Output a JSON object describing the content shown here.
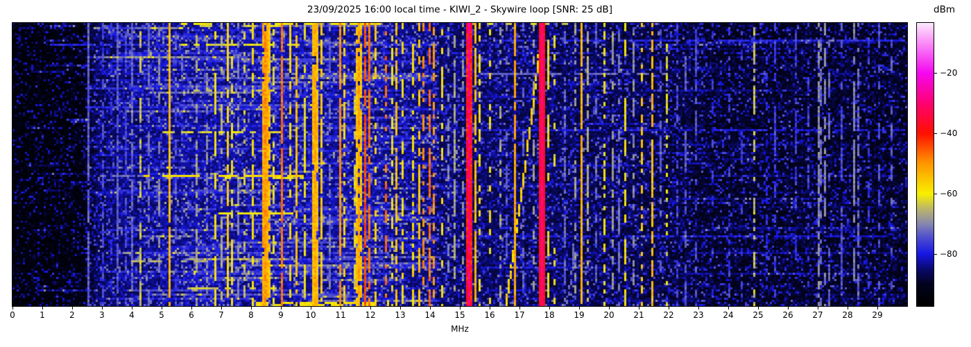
{
  "title": "23/09/2025 16:00 local time - KIWI_2 - Skywire loop [SNR: 25 dB]",
  "colorbar": {
    "label": "dBm",
    "ticks": [
      -20,
      -40,
      -60,
      -80
    ]
  },
  "chart_data": {
    "type": "heatmap",
    "title": "23/09/2025 16:00 local time - KIWI_2 - Skywire loop [SNR: 25 dB]",
    "xlabel": "MHz",
    "x_range": [
      0,
      30
    ],
    "x_ticks": [
      0,
      1,
      2,
      3,
      4,
      5,
      6,
      7,
      8,
      9,
      10,
      11,
      12,
      13,
      14,
      15,
      16,
      17,
      18,
      19,
      20,
      21,
      22,
      23,
      24,
      25,
      26,
      27,
      28,
      29
    ],
    "y_axis_labels_visible": false,
    "value_unit": "dBm",
    "value_range": [
      -97.2,
      -3.4
    ],
    "colorbar_ticks": [
      -20,
      -40,
      -60,
      -80
    ],
    "legend_position": "right-colorbar",
    "grid": [
      430,
      136
    ],
    "seed": 1234,
    "colormap_stops": [
      [
        -97.2,
        "#000000"
      ],
      [
        -90,
        "#03031e"
      ],
      [
        -85,
        "#0a0a6e"
      ],
      [
        -80,
        "#1717e6"
      ],
      [
        -75,
        "#4a4ad2"
      ],
      [
        -70,
        "#8787b0"
      ],
      [
        -65,
        "#bdb76b"
      ],
      [
        -60,
        "#f8f000"
      ],
      [
        -50,
        "#ff9800"
      ],
      [
        -40,
        "#ff1000"
      ],
      [
        -30,
        "#ff0272"
      ],
      [
        -20,
        "#f607f0"
      ],
      [
        -10,
        "#fa8cf8"
      ],
      [
        -3.4,
        "#fde9fd"
      ]
    ],
    "noise_profile": [
      [
        0,
        -95.5
      ],
      [
        2.3,
        -95
      ],
      [
        2.7,
        -89
      ],
      [
        3.2,
        -86.5
      ],
      [
        6,
        -84.5
      ],
      [
        9,
        -84
      ],
      [
        12,
        -84.5
      ],
      [
        14,
        -86
      ],
      [
        16,
        -87.5
      ],
      [
        19,
        -88
      ],
      [
        22,
        -89
      ],
      [
        23.5,
        -91
      ],
      [
        27,
        -91
      ],
      [
        30,
        -91.5
      ]
    ],
    "signals": [
      [
        2.52,
        -73,
        0.95
      ],
      [
        3.0,
        -76,
        0.7
      ],
      [
        3.3,
        -78,
        0.5
      ],
      [
        3.55,
        -74,
        0.85
      ],
      [
        3.8,
        -76,
        0.6
      ],
      [
        4.0,
        -73,
        0.85
      ],
      [
        4.28,
        -64,
        0.55
      ],
      [
        4.6,
        -72,
        0.6
      ],
      [
        4.9,
        -70,
        0.5
      ],
      [
        5.25,
        -54,
        0.97
      ],
      [
        5.45,
        -75,
        0.5
      ],
      [
        6.2,
        -67,
        0.5
      ],
      [
        6.55,
        -70,
        0.5
      ],
      [
        6.8,
        -60,
        0.55
      ],
      [
        7.0,
        -66,
        0.6
      ],
      [
        7.2,
        -57,
        0.75
      ],
      [
        7.35,
        -60,
        0.5
      ],
      [
        7.55,
        -70,
        0.55
      ],
      [
        7.8,
        -64,
        0.5
      ],
      [
        8.08,
        -58,
        0.55
      ],
      [
        8.45,
        -50,
        0.95,
        1,
        2,
        7
      ],
      [
        8.6,
        -55,
        0.7
      ],
      [
        8.78,
        -62,
        0.45
      ],
      [
        9.06,
        -47,
        0.9
      ],
      [
        9.3,
        -58,
        0.55
      ],
      [
        9.55,
        -55,
        0.8
      ],
      [
        9.8,
        -61,
        0.45
      ],
      [
        10.15,
        -52,
        0.95,
        1,
        2,
        7
      ],
      [
        10.35,
        -56,
        0.7
      ],
      [
        10.62,
        -72,
        0.55
      ],
      [
        11.0,
        -50,
        0.9
      ],
      [
        11.15,
        -57,
        0.65
      ],
      [
        11.45,
        -63,
        0.5
      ],
      [
        11.65,
        -52,
        0.85,
        1,
        3,
        7
      ],
      [
        11.86,
        -44,
        0.9
      ],
      [
        11.98,
        -47,
        0.75
      ],
      [
        12.2,
        -57,
        0.5
      ],
      [
        12.5,
        -47,
        0.45
      ],
      [
        12.7,
        -61,
        0.5
      ],
      [
        12.87,
        -55,
        0.7
      ],
      [
        13.1,
        -59,
        0.5
      ],
      [
        13.4,
        -58,
        0.5
      ],
      [
        13.62,
        -55,
        0.6
      ],
      [
        13.76,
        -50,
        0.55
      ],
      [
        14.02,
        -47,
        0.65
      ],
      [
        14.16,
        -50,
        0.5
      ],
      [
        14.4,
        -59,
        0.35
      ],
      [
        14.62,
        -70,
        0.4
      ],
      [
        14.85,
        -67,
        0.7
      ],
      [
        15.07,
        -69,
        0.5
      ],
      [
        15.33,
        -29,
        1,
        1,
        10,
        11
      ],
      [
        15.5,
        -54,
        0.85
      ],
      [
        15.63,
        -58,
        0.5
      ],
      [
        16.0,
        -59,
        0.4
      ],
      [
        16.35,
        -67,
        0.45
      ],
      [
        16.6,
        -74,
        0.4
      ],
      [
        16.84,
        -52,
        0.95
      ],
      [
        17.1,
        -73,
        0.5
      ],
      [
        17.5,
        -68,
        0.45
      ],
      [
        17.79,
        -27,
        1,
        1,
        12,
        5
      ],
      [
        17.97,
        -58,
        0.4
      ],
      [
        18.2,
        -60,
        0.35
      ],
      [
        18.55,
        -73,
        0.5
      ],
      [
        18.9,
        -68,
        0.4
      ],
      [
        19.08,
        -53,
        0.9
      ],
      [
        19.3,
        -66,
        0.5
      ],
      [
        19.6,
        -73,
        0.45
      ],
      [
        19.85,
        -60,
        0.4
      ],
      [
        20.1,
        -68,
        0.5
      ],
      [
        20.35,
        -72,
        0.5
      ],
      [
        20.57,
        -60,
        0.45
      ],
      [
        20.8,
        -70,
        0.55
      ],
      [
        21.1,
        -56,
        0.5
      ],
      [
        21.45,
        -54,
        0.85
      ],
      [
        21.7,
        -73,
        0.4
      ],
      [
        21.95,
        -62,
        0.3
      ],
      [
        22.3,
        -76,
        0.5
      ],
      [
        22.6,
        -74,
        0.4
      ],
      [
        22.9,
        -75,
        0.5
      ],
      [
        23.5,
        -77,
        0.4
      ],
      [
        24.0,
        -76,
        0.45
      ],
      [
        24.45,
        -77,
        0.4
      ],
      [
        24.9,
        -64,
        0.5
      ],
      [
        25.3,
        -78,
        0.4
      ],
      [
        25.6,
        -76,
        0.45
      ],
      [
        26.3,
        -77,
        0.4
      ],
      [
        26.7,
        -76,
        0.4
      ],
      [
        27.0,
        -70,
        0.65
      ],
      [
        27.12,
        -72,
        0.6
      ],
      [
        27.25,
        -70,
        0.6
      ],
      [
        27.4,
        -73,
        0.5
      ],
      [
        27.8,
        -75,
        0.4
      ],
      [
        28.2,
        -70,
        0.55
      ],
      [
        28.35,
        -73,
        0.5
      ],
      [
        28.7,
        -77,
        0.4
      ],
      [
        29.05,
        -75,
        0.4
      ],
      [
        29.5,
        -74,
        0.45
      ]
    ],
    "streaks": [
      [
        0,
        5.5,
        12.3,
        -60,
        0.5
      ],
      [
        0,
        15.0,
        19.5,
        -63,
        0.35
      ],
      [
        1,
        6.0,
        9.0,
        -62,
        0.5
      ],
      [
        8,
        15.0,
        29.9,
        -79,
        0.85
      ],
      [
        10,
        5.6,
        9.6,
        -62,
        0.65
      ],
      [
        10,
        1.0,
        5.6,
        -79,
        0.7
      ],
      [
        18,
        2.8,
        13.5,
        -78,
        0.8
      ],
      [
        24,
        15.5,
        22.0,
        -73,
        0.6
      ],
      [
        32,
        6.0,
        9.2,
        -64,
        0.5
      ],
      [
        40,
        2.5,
        12.0,
        -79,
        0.8
      ],
      [
        51,
        14.5,
        29.9,
        -81,
        0.8
      ],
      [
        52,
        4.5,
        9.2,
        -62,
        0.6
      ],
      [
        60,
        3.0,
        13.0,
        -78,
        0.7
      ],
      [
        73,
        4.4,
        9.7,
        -58,
        0.78
      ],
      [
        73,
        2.8,
        4.4,
        -72,
        0.6
      ],
      [
        74,
        6.5,
        9.7,
        -62,
        0.5
      ],
      [
        91,
        6.4,
        9.4,
        -60,
        0.65
      ],
      [
        102,
        14.5,
        29.9,
        -81,
        0.75
      ],
      [
        108,
        3.65,
        3.95,
        -67,
        0.6
      ],
      [
        109,
        3.65,
        3.95,
        -67,
        0.6
      ],
      [
        110,
        3.65,
        3.95,
        -67,
        0.6
      ],
      [
        114,
        4.0,
        8.2,
        -66,
        0.5
      ],
      [
        127,
        5.9,
        8.8,
        -64,
        0.5
      ],
      [
        134,
        7.7,
        12.6,
        -58,
        0.6
      ],
      [
        135,
        7.0,
        12.6,
        -60,
        0.5
      ]
    ],
    "sweep": {
      "f_top": 17.75,
      "f_bottom": 16.55,
      "level": -57,
      "duty": 0.85
    },
    "arc": {
      "row0": 106,
      "f0": 18.82,
      "df": 0.28,
      "level": -73,
      "duty": 0.8
    }
  }
}
